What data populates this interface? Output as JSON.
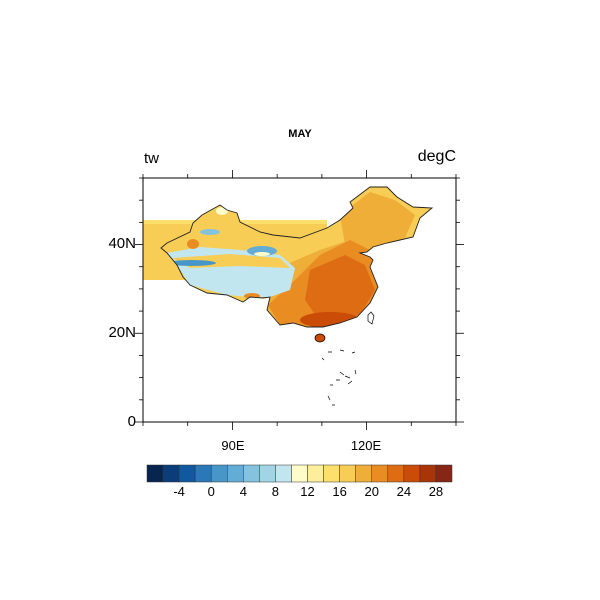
{
  "title": "MAY",
  "left_string": "tw",
  "right_string": "degC",
  "map": {
    "lon_range": [
      70,
      140
    ],
    "lat_range": [
      0,
      55
    ],
    "lon_ticks": [
      {
        "value": 90,
        "label": "90E"
      },
      {
        "value": 120,
        "label": "120E"
      }
    ],
    "lat_ticks": [
      {
        "value": 0,
        "label": "0"
      },
      {
        "value": 20,
        "label": "20N"
      },
      {
        "value": 40,
        "label": "40N"
      }
    ],
    "lon_minor_step": 10,
    "lat_minor_step": 5
  },
  "colorbar": {
    "levels": [
      -6,
      -4,
      -2,
      0,
      2,
      4,
      6,
      8,
      10,
      12,
      14,
      16,
      18,
      20,
      22,
      24,
      26,
      28
    ],
    "labels": [
      "-4",
      "0",
      "4",
      "8",
      "12",
      "16",
      "20",
      "24",
      "28"
    ],
    "colors": [
      "#08254f",
      "#0b3d7a",
      "#1058a0",
      "#2b78b8",
      "#4896c8",
      "#63acd5",
      "#85c2de",
      "#a3d4e6",
      "#c2e6f0",
      "#fefdca",
      "#fdee9c",
      "#fde06c",
      "#f8cd56",
      "#eeae38",
      "#e98d22",
      "#de6c12",
      "#ca4c06",
      "#a83508",
      "#862617"
    ]
  }
}
